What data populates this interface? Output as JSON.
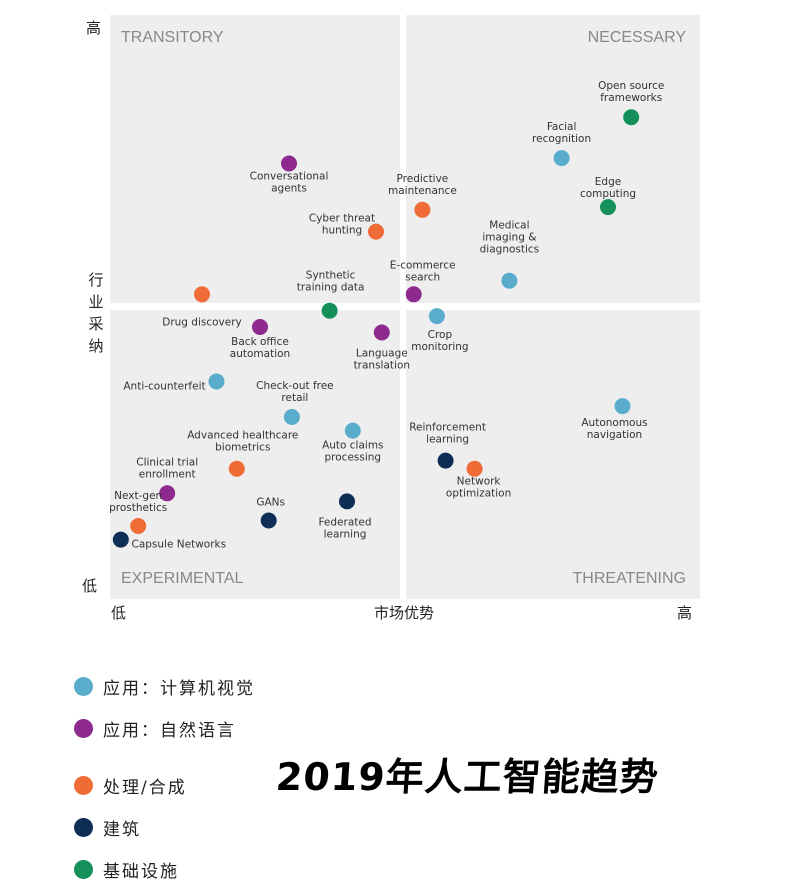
{
  "chart_data": {
    "type": "scatter",
    "title": "2019年人工智能趋势",
    "xlabel": "市场优势",
    "ylabel": "行业采纳",
    "x_low_label": "低",
    "x_high_label": "高",
    "y_low_label": "低",
    "y_high_label": "高",
    "xlim": [
      0,
      100
    ],
    "ylim": [
      0,
      100
    ],
    "grid": false,
    "legend_position": "bottom-left",
    "quadrants": {
      "top_left": "TRANSITORY",
      "top_right": "NECESSARY",
      "bottom_left": "EXPERIMENTAL",
      "bottom_right": "THREATENING"
    },
    "categories": [
      {
        "id": "cv",
        "name": "应用：计算机视觉",
        "color": "#5aaccc"
      },
      {
        "id": "nl",
        "name": "应用：自然语言",
        "color": "#8e2a8e"
      },
      {
        "id": "proc",
        "name": "处理/合成",
        "color": "#ef6c36"
      },
      {
        "id": "build",
        "name": "建筑",
        "color": "#0e2e57"
      },
      {
        "id": "infra",
        "name": "基础设施",
        "color": "#15905a"
      }
    ],
    "points": [
      {
        "label": [
          "Open source",
          "frameworks"
        ],
        "category": "infra",
        "x": 89,
        "y": 84,
        "lx": 0,
        "ly": -26
      },
      {
        "label": [
          "Facial",
          "recognition"
        ],
        "category": "cv",
        "x": 77,
        "y": 76.5,
        "lx": 0,
        "ly": -26
      },
      {
        "label": [
          "Edge",
          "computing"
        ],
        "category": "infra",
        "x": 85,
        "y": 67.5,
        "lx": 0,
        "ly": -20
      },
      {
        "label": [
          "Conversational",
          "agents"
        ],
        "category": "nl",
        "x": 30,
        "y": 75.5,
        "lx": 0,
        "ly": 18
      },
      {
        "label": [
          "Predictive",
          "maintenance"
        ],
        "category": "proc",
        "x": 53,
        "y": 67,
        "lx": 0,
        "ly": -26
      },
      {
        "label": [
          "Cyber threat",
          "hunting"
        ],
        "category": "proc",
        "x": 45,
        "y": 63,
        "lx": -34,
        "ly": -8
      },
      {
        "label": [
          "Medical",
          "imaging &",
          "diagnostics"
        ],
        "category": "cv",
        "x": 68,
        "y": 54,
        "lx": 0,
        "ly": -44
      },
      {
        "label": [
          "E-commerce",
          "search"
        ],
        "category": "nl",
        "x": 51.5,
        "y": 51.5,
        "lx": 9,
        "ly": -24
      },
      {
        "label": [
          "Synthetic",
          "training data"
        ],
        "category": "infra",
        "x": 37,
        "y": 48.5,
        "lx": 1,
        "ly": -30
      },
      {
        "label": [
          "Drug discovery"
        ],
        "category": "proc",
        "x": 15,
        "y": 51.5,
        "lx": 0,
        "ly": 27
      },
      {
        "label": [
          "Crop",
          "monitoring"
        ],
        "category": "cv",
        "x": 55.5,
        "y": 47.5,
        "lx": 3,
        "ly": 24
      },
      {
        "label": [
          "Back office",
          "automation"
        ],
        "category": "nl",
        "x": 25,
        "y": 45.5,
        "lx": 0,
        "ly": 20
      },
      {
        "label": [
          "Language",
          "translation"
        ],
        "category": "nl",
        "x": 46,
        "y": 44.5,
        "lx": 0,
        "ly": 26
      },
      {
        "label": [
          "Anti-counterfeit"
        ],
        "category": "cv",
        "x": 17.5,
        "y": 35.5,
        "lx": -52,
        "ly": 4
      },
      {
        "label": [
          "Check-out free",
          "retail"
        ],
        "category": "cv",
        "x": 30.5,
        "y": 29,
        "lx": 3,
        "ly": -26
      },
      {
        "label": [
          "Autonomous",
          "navigation"
        ],
        "category": "cv",
        "x": 87.5,
        "y": 31,
        "lx": -8,
        "ly": 22
      },
      {
        "label": [
          "Auto claims",
          "processing"
        ],
        "category": "cv",
        "x": 41,
        "y": 26.5,
        "lx": 0,
        "ly": 20
      },
      {
        "label": [
          "Reinforcement",
          "learning"
        ],
        "category": "build",
        "x": 57,
        "y": 21,
        "lx": 2,
        "ly": -28
      },
      {
        "label": [
          "Advanced healthcare",
          "biometrics"
        ],
        "category": "proc",
        "x": 21,
        "y": 19.5,
        "lx": 6,
        "ly": -28
      },
      {
        "label": [
          "Network",
          "optimization"
        ],
        "category": "proc",
        "x": 62,
        "y": 19.5,
        "lx": 4,
        "ly": 18
      },
      {
        "label": [
          "Clinical trial",
          "enrollment"
        ],
        "category": "nl",
        "x": 9,
        "y": 15,
        "lx": 0,
        "ly": -26
      },
      {
        "label": [
          "GANs"
        ],
        "category": "build",
        "x": 26.5,
        "y": 10,
        "lx": 2,
        "ly": -19
      },
      {
        "label": [
          "Federated",
          "learning"
        ],
        "category": "build",
        "x": 40,
        "y": 13.5,
        "lx": -2,
        "ly": 26
      },
      {
        "label": [
          "Next-gen",
          "prosthetics"
        ],
        "category": "proc",
        "x": 4,
        "y": 9,
        "lx": 0,
        "ly": -25
      },
      {
        "label": [
          "Capsule Networks"
        ],
        "category": "build",
        "x": 1,
        "y": 6.5,
        "lx": 58,
        "ly": 4
      }
    ]
  }
}
